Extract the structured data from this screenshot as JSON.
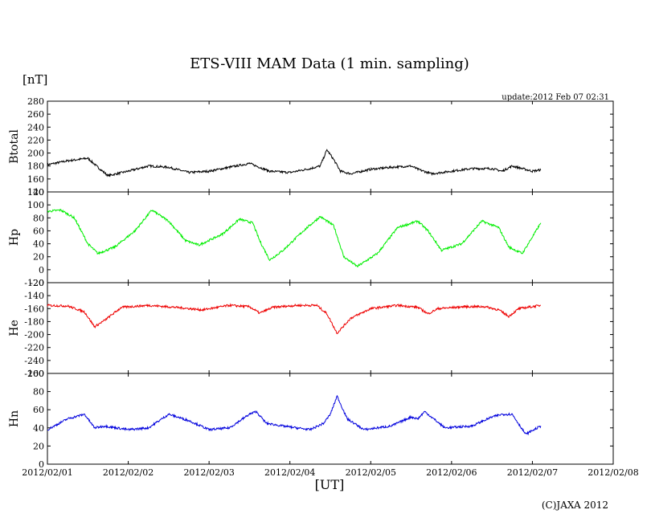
{
  "header": {
    "title": "ETS-VIII MAM Data (1 min. sampling)",
    "unit": "[nT]",
    "update": "update:2012 Feb 07 02:31"
  },
  "footer": {
    "xaxis_label": "[UT]",
    "copyright": "(C)JAXA 2012"
  },
  "chart_data": [
    {
      "type": "line",
      "ylabel": "Btotal",
      "color": "#000000",
      "ylim": [
        140,
        280
      ],
      "yticks": [
        280,
        260,
        240,
        220,
        200,
        180,
        160,
        140
      ],
      "x": [
        "2012-02-01 00:00",
        "2012-02-01 06:00",
        "2012-02-01 12:00",
        "2012-02-01 15:00",
        "2012-02-01 18:00",
        "2012-02-02 00:00",
        "2012-02-02 06:00",
        "2012-02-02 12:00",
        "2012-02-02 18:00",
        "2012-02-03 00:00",
        "2012-02-03 06:00",
        "2012-02-03 12:00",
        "2012-02-03 14:00",
        "2012-02-03 18:00",
        "2012-02-04 00:00",
        "2012-02-04 06:00",
        "2012-02-04 09:00",
        "2012-02-04 11:00",
        "2012-02-04 13:00",
        "2012-02-04 15:00",
        "2012-02-04 18:00",
        "2012-02-05 00:00",
        "2012-02-05 06:00",
        "2012-02-05 12:00",
        "2012-02-05 14:00",
        "2012-02-05 18:00",
        "2012-02-06 00:00",
        "2012-02-06 06:00",
        "2012-02-06 12:00",
        "2012-02-06 15:00",
        "2012-02-06 18:00",
        "2012-02-07 00:00",
        "2012-02-07 02:30"
      ],
      "y": [
        182,
        188,
        192,
        178,
        165,
        172,
        180,
        178,
        170,
        172,
        178,
        184,
        180,
        172,
        170,
        176,
        180,
        205,
        190,
        172,
        168,
        175,
        178,
        180,
        175,
        168,
        172,
        176,
        176,
        172,
        180,
        172,
        174
      ]
    },
    {
      "type": "line",
      "ylabel": "Hp",
      "color": "#00ee00",
      "ylim": [
        -20,
        120
      ],
      "yticks": [
        120,
        100,
        80,
        60,
        40,
        20,
        0,
        -20
      ],
      "x": [
        "2012-02-01 00:00",
        "2012-02-01 04:00",
        "2012-02-01 08:00",
        "2012-02-01 12:00",
        "2012-02-01 15:00",
        "2012-02-01 20:00",
        "2012-02-02 02:00",
        "2012-02-02 07:00",
        "2012-02-02 12:00",
        "2012-02-02 17:00",
        "2012-02-02 21:00",
        "2012-02-03 04:00",
        "2012-02-03 09:00",
        "2012-02-03 13:00",
        "2012-02-03 15:00",
        "2012-02-03 18:00",
        "2012-02-03 22:00",
        "2012-02-04 04:00",
        "2012-02-04 09:00",
        "2012-02-04 13:00",
        "2012-02-04 16:00",
        "2012-02-04 20:00",
        "2012-02-05 02:00",
        "2012-02-05 08:00",
        "2012-02-05 14:00",
        "2012-02-05 17:00",
        "2012-02-05 21:00",
        "2012-02-06 03:00",
        "2012-02-06 09:00",
        "2012-02-06 14:00",
        "2012-02-06 17:00",
        "2012-02-06 21:00",
        "2012-02-07 02:30"
      ],
      "y": [
        90,
        92,
        80,
        40,
        25,
        35,
        60,
        92,
        75,
        45,
        38,
        55,
        78,
        72,
        45,
        15,
        30,
        60,
        82,
        68,
        20,
        5,
        25,
        65,
        75,
        60,
        30,
        40,
        75,
        65,
        35,
        25,
        72
      ]
    },
    {
      "type": "line",
      "ylabel": "He",
      "color": "#ee0000",
      "ylim": [
        -260,
        -120
      ],
      "yticks": [
        -120,
        -140,
        -160,
        -180,
        -200,
        -220,
        -240,
        -260
      ],
      "x": [
        "2012-02-01 00:00",
        "2012-02-01 06:00",
        "2012-02-01 11:00",
        "2012-02-01 14:00",
        "2012-02-01 17:00",
        "2012-02-01 22:00",
        "2012-02-02 06:00",
        "2012-02-02 14:00",
        "2012-02-02 22:00",
        "2012-02-03 06:00",
        "2012-02-03 12:00",
        "2012-02-03 15:00",
        "2012-02-03 19:00",
        "2012-02-04 02:00",
        "2012-02-04 08:00",
        "2012-02-04 11:00",
        "2012-02-04 14:00",
        "2012-02-04 18:00",
        "2012-02-05 00:00",
        "2012-02-05 08:00",
        "2012-02-05 14:00",
        "2012-02-05 17:00",
        "2012-02-05 20:00",
        "2012-02-06 04:00",
        "2012-02-06 10:00",
        "2012-02-06 14:00",
        "2012-02-06 17:00",
        "2012-02-06 20:00",
        "2012-02-07 02:30"
      ],
      "y": [
        -155,
        -156,
        -165,
        -188,
        -178,
        -158,
        -155,
        -158,
        -162,
        -155,
        -157,
        -167,
        -158,
        -155,
        -155,
        -168,
        -198,
        -175,
        -160,
        -155,
        -158,
        -168,
        -160,
        -157,
        -157,
        -162,
        -172,
        -160,
        -155
      ]
    },
    {
      "type": "line",
      "ylabel": "Hn",
      "color": "#0000dd",
      "ylim": [
        0,
        100
      ],
      "yticks": [
        100,
        80,
        60,
        40,
        20,
        0
      ],
      "x": [
        "2012-02-01 00:00",
        "2012-02-01 06:00",
        "2012-02-01 11:00",
        "2012-02-01 14:00",
        "2012-02-01 17:00",
        "2012-02-02 00:00",
        "2012-02-02 06:00",
        "2012-02-02 12:00",
        "2012-02-02 18:00",
        "2012-02-03 00:00",
        "2012-02-03 06:00",
        "2012-02-03 12:00",
        "2012-02-03 14:00",
        "2012-02-03 17:00",
        "2012-02-03 22:00",
        "2012-02-04 06:00",
        "2012-02-04 10:00",
        "2012-02-04 12:00",
        "2012-02-04 14:00",
        "2012-02-04 17:00",
        "2012-02-04 22:00",
        "2012-02-05 06:00",
        "2012-02-05 12:00",
        "2012-02-05 14:00",
        "2012-02-05 16:00",
        "2012-02-05 22:00",
        "2012-02-06 06:00",
        "2012-02-06 12:00",
        "2012-02-06 15:00",
        "2012-02-06 18:00",
        "2012-02-06 22:00",
        "2012-02-07 02:30"
      ],
      "y": [
        38,
        50,
        55,
        40,
        42,
        38,
        40,
        55,
        48,
        38,
        40,
        55,
        58,
        45,
        42,
        38,
        45,
        55,
        75,
        50,
        38,
        42,
        52,
        50,
        58,
        40,
        42,
        52,
        55,
        55,
        33,
        42
      ]
    }
  ],
  "x_axis": {
    "range": [
      "2012-02-01",
      "2012-02-08"
    ],
    "ticks": [
      "2012/02/01",
      "2012/02/02",
      "2012/02/03",
      "2012/02/04",
      "2012/02/05",
      "2012/02/06",
      "2012/02/07",
      "2012/02/08"
    ]
  }
}
